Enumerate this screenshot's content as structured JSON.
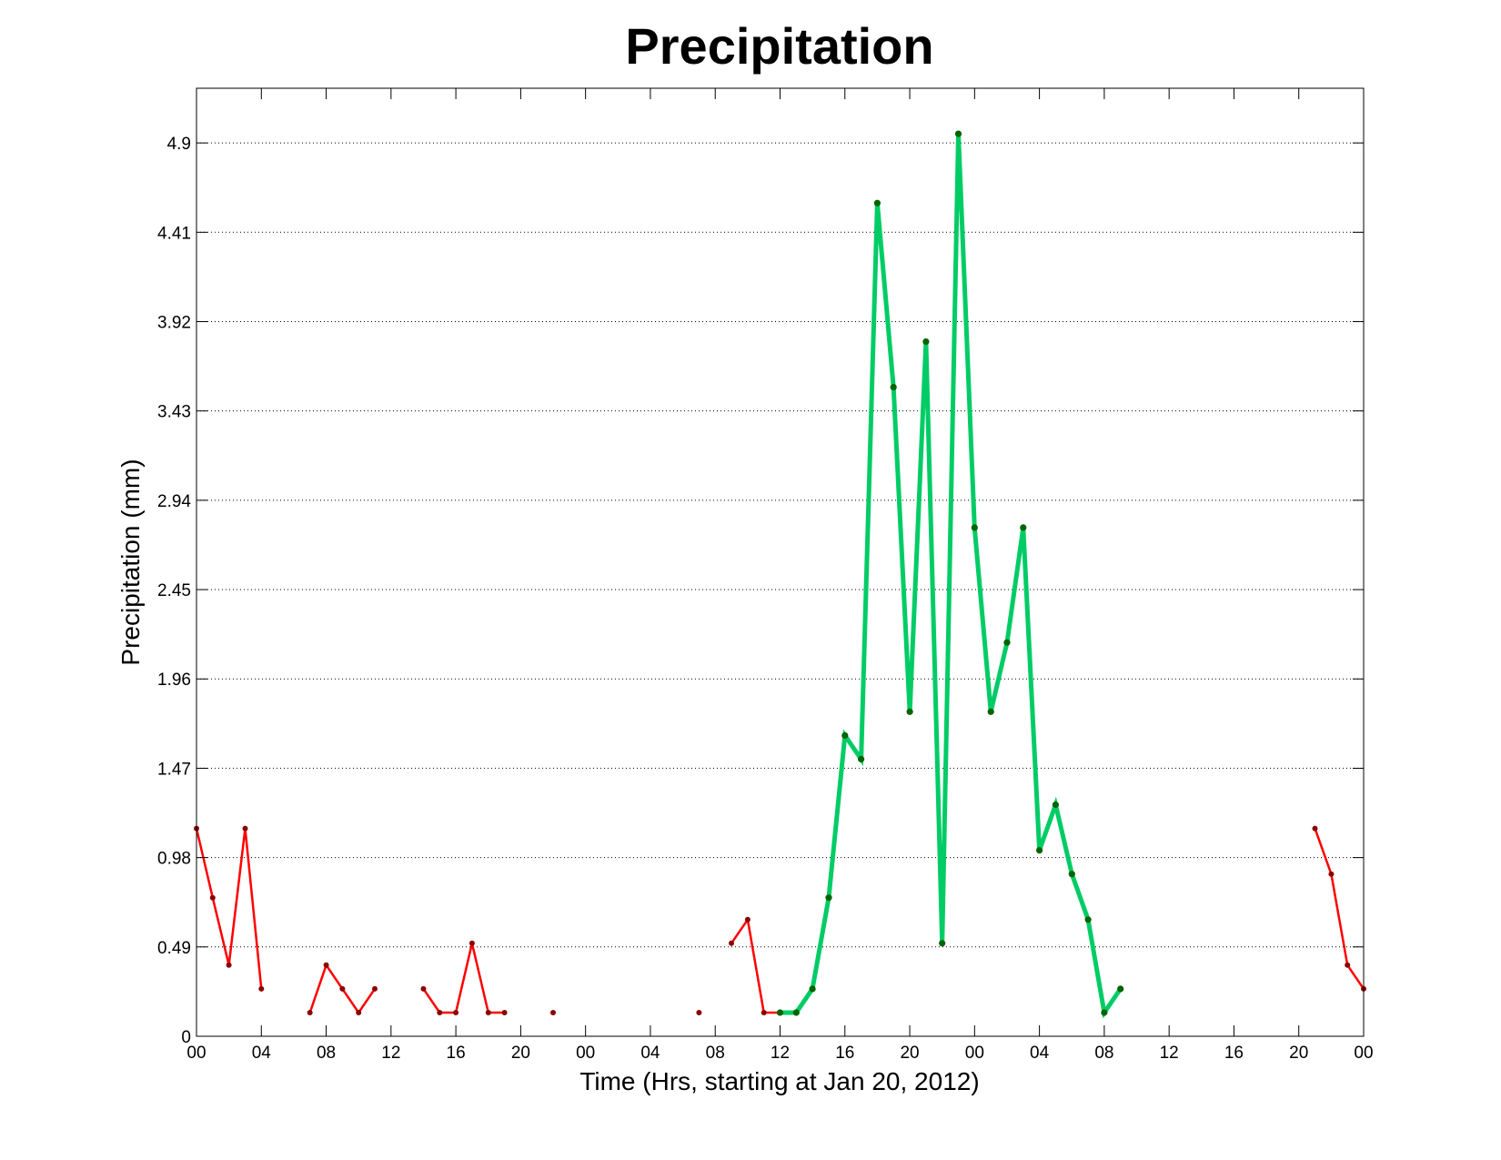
{
  "chart_data": {
    "type": "line",
    "title": "Precipitation",
    "xlabel": "Time (Hrs, starting at Jan 20, 2012)",
    "ylabel": "Precipitation (mm)",
    "xlim": [
      0,
      72
    ],
    "ylim": [
      0,
      5.2
    ],
    "x_ticks": [
      0,
      4,
      8,
      12,
      16,
      20,
      24,
      28,
      32,
      36,
      40,
      44,
      48,
      52,
      56,
      60,
      64,
      68,
      72
    ],
    "x_tick_labels": [
      "00",
      "04",
      "08",
      "12",
      "16",
      "20",
      "00",
      "04",
      "08",
      "12",
      "16",
      "20",
      "00",
      "04",
      "08",
      "12",
      "16",
      "20",
      "00"
    ],
    "y_ticks": [
      0,
      0.49,
      0.98,
      1.47,
      1.96,
      2.45,
      2.94,
      3.43,
      3.92,
      4.41,
      4.9
    ],
    "y_tick_labels": [
      "0",
      "0.49",
      "0.98",
      "1.47",
      "1.96",
      "2.45",
      "2.94",
      "3.43",
      "3.92",
      "4.41",
      "4.9"
    ],
    "grid": "horizontal-dotted",
    "series": [
      {
        "color": "#ff0000",
        "marker_color": "#8b0000",
        "segments": [
          [
            [
              0,
              1.14
            ],
            [
              1,
              0.76
            ],
            [
              2,
              0.39
            ],
            [
              3,
              1.14
            ],
            [
              4,
              0.26
            ]
          ],
          [
            [
              7,
              0.13
            ],
            [
              8,
              0.39
            ],
            [
              9,
              0.26
            ],
            [
              10,
              0.13
            ],
            [
              11,
              0.26
            ]
          ],
          [
            [
              14,
              0.26
            ],
            [
              15,
              0.13
            ],
            [
              16,
              0.13
            ],
            [
              17,
              0.51
            ],
            [
              18,
              0.13
            ],
            [
              19,
              0.13
            ]
          ],
          [
            [
              22,
              0.13
            ]
          ],
          [
            [
              31,
              0.13
            ]
          ],
          [
            [
              33,
              0.51
            ],
            [
              34,
              0.64
            ],
            [
              35,
              0.13
            ],
            [
              36,
              0.13
            ]
          ],
          [
            [
              69,
              1.14
            ],
            [
              70,
              0.89
            ],
            [
              71,
              0.39
            ],
            [
              72,
              0.26
            ]
          ]
        ]
      },
      {
        "color": "#00cc66",
        "marker_color": "#006400",
        "segments": [
          [
            [
              36,
              0.13
            ],
            [
              37,
              0.13
            ],
            [
              38,
              0.26
            ],
            [
              39,
              0.76
            ],
            [
              40,
              1.65
            ],
            [
              41,
              1.52
            ],
            [
              42,
              4.57
            ],
            [
              43,
              3.56
            ],
            [
              44,
              1.78
            ],
            [
              45,
              3.81
            ],
            [
              46,
              0.51
            ],
            [
              47,
              4.95
            ],
            [
              48,
              2.79
            ],
            [
              49,
              1.78
            ],
            [
              50,
              2.16
            ],
            [
              51,
              2.79
            ],
            [
              52,
              1.02
            ],
            [
              53,
              1.27
            ],
            [
              54,
              0.89
            ],
            [
              55,
              0.64
            ],
            [
              56,
              0.13
            ],
            [
              57,
              0.26
            ]
          ]
        ]
      }
    ]
  }
}
